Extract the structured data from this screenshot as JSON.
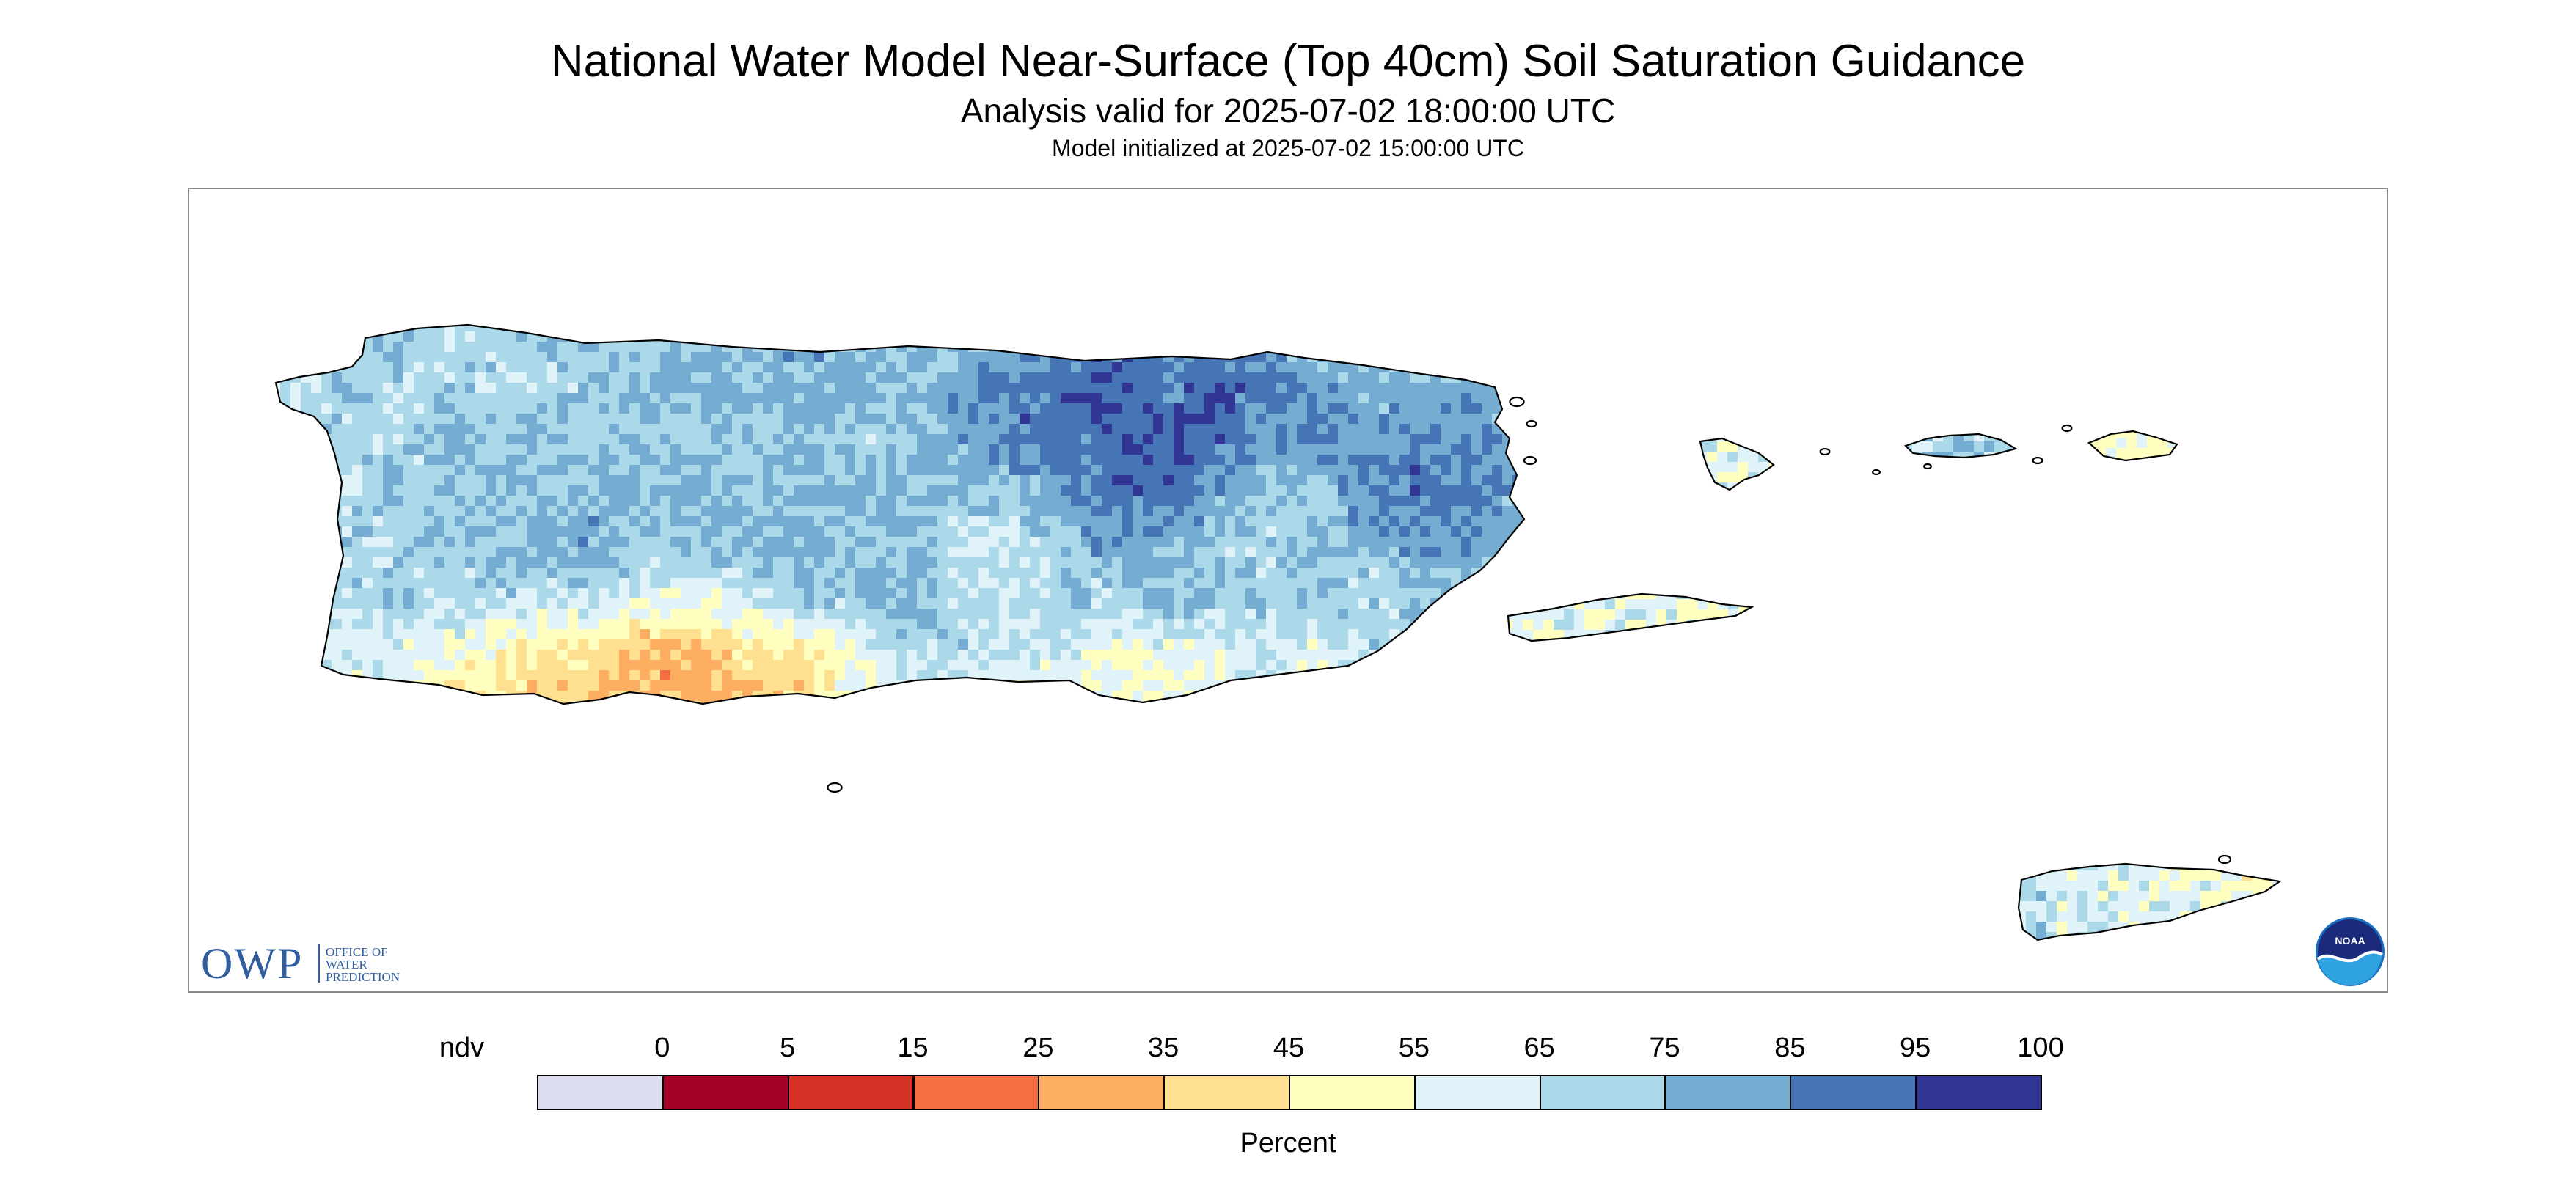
{
  "header": {
    "title": "National Water Model Near-Surface (Top 40cm) Soil Saturation Guidance",
    "subtitle": "Analysis valid for 2025-07-02 18:00:00 UTC",
    "init": "Model initialized at 2025-07-02 15:00:00 UTC"
  },
  "logos": {
    "owp_big": "OWP",
    "owp_line1": "OFFICE OF",
    "owp_line2": "WATER",
    "owp_line3": "PREDICTION",
    "noaa": "NOAA"
  },
  "legend": {
    "unit": "Percent",
    "ticks": [
      "ndv",
      "0",
      "5",
      "15",
      "25",
      "35",
      "45",
      "55",
      "65",
      "75",
      "85",
      "95",
      "100"
    ],
    "colors": [
      "#dcdcf0",
      "#a50026",
      "#d73027",
      "#f46d43",
      "#fdae61",
      "#fee090",
      "#ffffbf",
      "#e0f3f8",
      "#abd9e9",
      "#74add1",
      "#4575b4",
      "#313695"
    ]
  },
  "palette": {
    "outline": "#000000",
    "frame": "#8a8a8a",
    "owp_blue": "#2f5d9e"
  }
}
